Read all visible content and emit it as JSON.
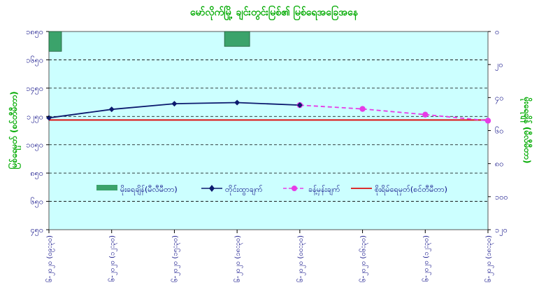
{
  "chart_data": {
    "type": "bar",
    "title": "မော်လိုက်မြို့ ချင်းတွင်းမြစ်၏ မြစ်ရေအခြေအနေ",
    "ylabel_left": "မြစ်ရေမှတ် (စင်တီမီတာ)",
    "ylabel_right": "မိုးရေချိန် (မီလီမီတာ)",
    "left_axis": {
      "ticks": [
        "၁၈၅၀",
        "၁၆၅၀",
        "၁၄၅၀",
        "၁၂၅၀",
        "၁၀၅၀",
        "၈၅၀",
        "၆၅၀",
        "၄၅၀"
      ],
      "values": [
        1850,
        1650,
        1450,
        1250,
        1050,
        850,
        650,
        450
      ],
      "ylim": [
        450,
        1850
      ]
    },
    "right_axis": {
      "ticks": [
        "၀",
        "၂၀",
        "၄၀",
        "၆၀",
        "၈၀",
        "၁၀၀",
        "၁၂၀"
      ],
      "values": [
        0,
        20,
        40,
        60,
        80,
        100,
        120
      ],
      "ylim": [
        0,
        120
      ],
      "reversed": true
    },
    "categories": [
      "၂၈-၆-၂၀၂၀ (၀၉:၃၀)",
      "၂၈-၆-၂၀၂၀ (၁၂:၃၀)",
      "၂၈-၆-၂၀၂၀ (၁၅:၃၀)",
      "၂၈-၆-၂၀၂၀ (၁၈:၃၀)",
      "၂၉-၆-၂၀၂၀ (၀၀:၃၀)",
      "၂၉-၆-၂၀၂၀ (၀၆:၃၀)",
      "၂၉-၆-၂၀၂၀ (၁၂:၃၀)",
      "၂၉-၆-၂၀၂၀ (၁၈:၃၀)"
    ],
    "series": [
      {
        "name": "မိုးရေချိန်(မီလီမီတာ)",
        "kind": "bar",
        "axis": "right",
        "color": "#3ba36b",
        "values": [
          12,
          null,
          null,
          9,
          null,
          null,
          null,
          null
        ]
      },
      {
        "name": "တိုင်းထွာချက်",
        "kind": "line",
        "axis": "left",
        "color": "#0c1a6e",
        "marker": "diamond",
        "x": [
          0,
          1,
          2,
          3,
          4
        ],
        "values": [
          1240,
          1300,
          1340,
          1348,
          1330
        ]
      },
      {
        "name": "ခန့်မှန်းချက်",
        "kind": "line",
        "axis": "left",
        "color": "#e63be6",
        "marker": "circle",
        "dashed": true,
        "x": [
          4,
          5,
          6,
          7
        ],
        "values": [
          1330,
          1303,
          1263,
          1220
        ]
      },
      {
        "name": "စိုးရိမ်ရေမှတ်(စင်တီမီတာ)",
        "kind": "hline",
        "axis": "left",
        "color": "#dd1111",
        "value": 1225
      }
    ],
    "grid": true,
    "legend": "bottom-center",
    "plot_background": "#ccffff"
  }
}
